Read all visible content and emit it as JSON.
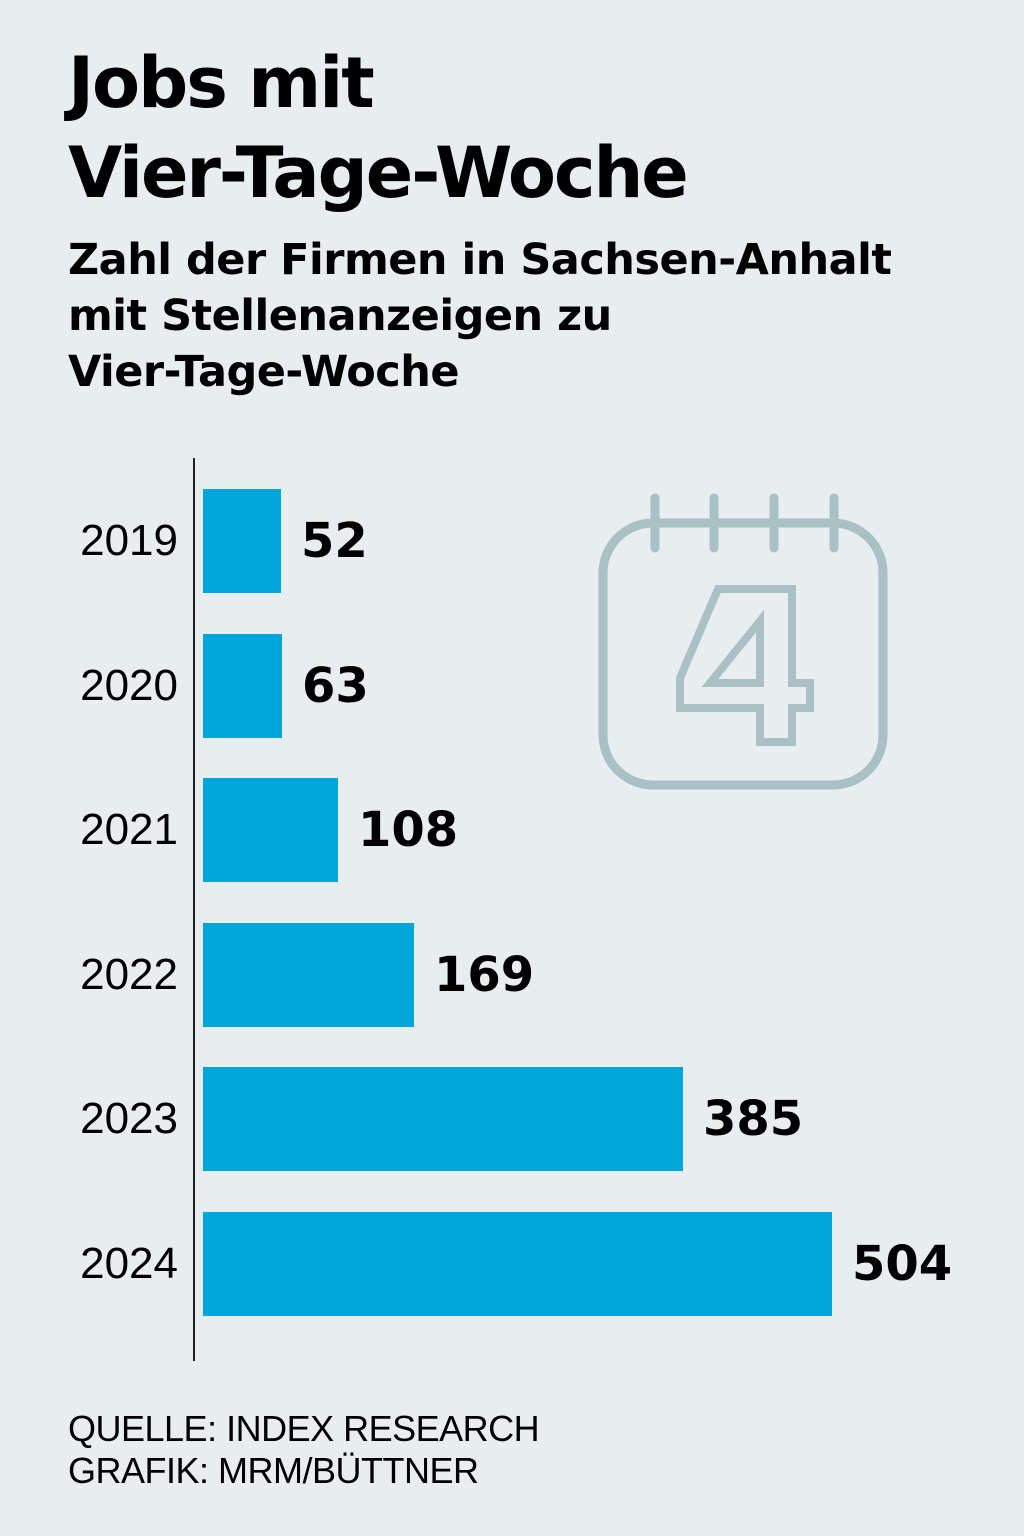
{
  "header": {
    "title_lines": [
      "Jobs mit",
      "Vier-Tage-Woche"
    ],
    "subtitle_lines": [
      "Zahl der Firmen in Sachsen-Anhalt",
      "mit Stellenanzeigen zu",
      "Vier-Tage-Woche"
    ]
  },
  "footer": {
    "source": "QUELLE: INDEX RESEARCH",
    "credit": "GRAFIK: MRM/BÜTTNER"
  },
  "icon": {
    "name": "calendar-icon",
    "digit": "4",
    "color": "#a9c0c5"
  },
  "colors": {
    "bar": "#00a5dc",
    "background": "#e8edf0",
    "text": "#000000"
  },
  "chart_data": {
    "type": "bar",
    "orientation": "horizontal",
    "title": "Jobs mit Vier-Tage-Woche",
    "subtitle": "Zahl der Firmen in Sachsen-Anhalt mit Stellenanzeigen zu Vier-Tage-Woche",
    "xlabel": "",
    "ylabel": "",
    "categories": [
      "2019",
      "2020",
      "2021",
      "2022",
      "2023",
      "2024"
    ],
    "values": [
      52,
      63,
      108,
      169,
      385,
      504
    ],
    "data_labels": [
      "52",
      "63",
      "108",
      "169",
      "385",
      "504"
    ],
    "xlim": [
      0,
      504
    ],
    "grid": false,
    "legend": "none"
  }
}
